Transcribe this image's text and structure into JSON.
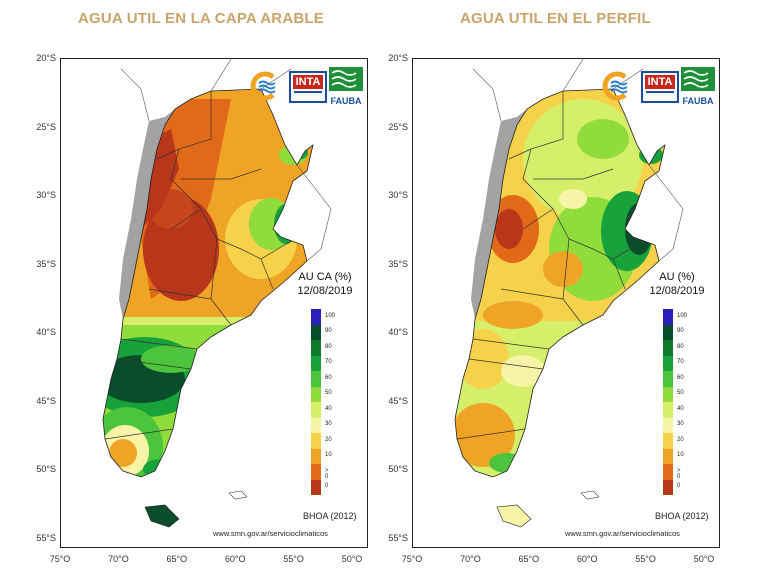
{
  "titles": {
    "left": "AGUA UTIL EN LA CAPA ARABLE",
    "right": "AGUA UTIL EN EL PERFIL"
  },
  "axes": {
    "lat_labels": [
      "20°S",
      "25°S",
      "30°S",
      "35°S",
      "40°S",
      "45°S",
      "50°S",
      "55°S"
    ],
    "lon_labels": [
      "75°O",
      "70°O",
      "65°O",
      "60°O",
      "55°O",
      "50°O"
    ]
  },
  "left_panel": {
    "legend_title": "AU CA (%)",
    "legend_date": "12/08/2019",
    "source": "www.smn.gov.ar/servicioclimaticos",
    "model": "BHOA (2012)"
  },
  "right_panel": {
    "legend_title": "AU (%)",
    "legend_date": "12/08/2019",
    "source": "www.smn.gov.ar/servicioclimaticos",
    "model": "BHOA (2012)"
  },
  "logos": {
    "inta": "INTA",
    "fauba": "FAUBA"
  },
  "legend": {
    "levels": [
      "100",
      "90",
      "80",
      "70",
      "60",
      "50",
      "40",
      "30",
      "20",
      "10",
      "> 0",
      "0"
    ],
    "colors": [
      "#2b1fb8",
      "#0a4d2a",
      "#0d7a2e",
      "#18a23a",
      "#4cc43c",
      "#8fdc3a",
      "#d6ef6a",
      "#f7f4a8",
      "#f5d24a",
      "#f0a425",
      "#e06a18",
      "#b8361a"
    ]
  },
  "colors": {
    "title": "#c9a46a",
    "andes_gray": "#9a9a9a",
    "border": "#222222"
  }
}
